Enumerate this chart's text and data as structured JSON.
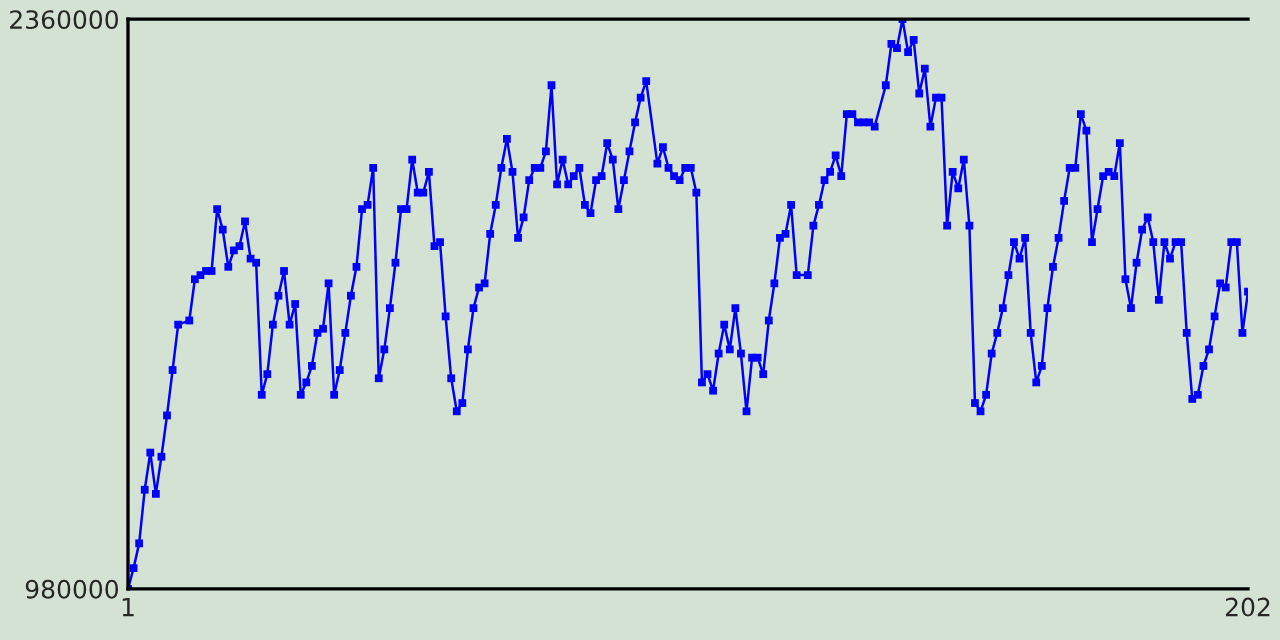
{
  "chart_data": {
    "type": "line",
    "marker": "square",
    "color": "#0000ff",
    "x": [
      1,
      2,
      3,
      4,
      5,
      6,
      7,
      8,
      9,
      10,
      12,
      13,
      14,
      15,
      16,
      17,
      18,
      19,
      20,
      21,
      22,
      23,
      24,
      25,
      26,
      27,
      28,
      29,
      30,
      31,
      32,
      33,
      34,
      35,
      36,
      37,
      38,
      39,
      40,
      41,
      42,
      43,
      44,
      45,
      46,
      47,
      48,
      49,
      50,
      51,
      52,
      53,
      54,
      55,
      56,
      57,
      58,
      59,
      60,
      61,
      62,
      63,
      64,
      65,
      66,
      67,
      68,
      69,
      70,
      71,
      72,
      73,
      74,
      75,
      76,
      77,
      78,
      79,
      80,
      81,
      82,
      83,
      84,
      85,
      86,
      87,
      88,
      89,
      90,
      91,
      92,
      93,
      94,
      96,
      97,
      98,
      99,
      100,
      101,
      102,
      103,
      104,
      105,
      106,
      107,
      108,
      109,
      110,
      111,
      112,
      113,
      114,
      115,
      116,
      117,
      118,
      119,
      120,
      121,
      123,
      124,
      125,
      126,
      127,
      128,
      129,
      130,
      131,
      132,
      133,
      134,
      135,
      137,
      138,
      139,
      140,
      141,
      142,
      143,
      144,
      145,
      146,
      147,
      148,
      149,
      150,
      151,
      152,
      153,
      154,
      155,
      156,
      157,
      158,
      159,
      160,
      161,
      162,
      163,
      164,
      165,
      166,
      167,
      168,
      169,
      170,
      171,
      172,
      173,
      174,
      175,
      176,
      177,
      178,
      179,
      180,
      181,
      182,
      183,
      184,
      185,
      186,
      187,
      188,
      189,
      190,
      191,
      192,
      193,
      194,
      195,
      196,
      197,
      198,
      199,
      200,
      201,
      202
    ],
    "values": [
      980000,
      1030000,
      1090000,
      1220000,
      1310000,
      1210000,
      1300000,
      1400000,
      1510000,
      1620000,
      1630000,
      1730000,
      1740000,
      1750000,
      1750000,
      1900000,
      1850000,
      1760000,
      1800000,
      1810000,
      1870000,
      1780000,
      1770000,
      1450000,
      1500000,
      1620000,
      1690000,
      1750000,
      1620000,
      1670000,
      1450000,
      1480000,
      1520000,
      1600000,
      1610000,
      1720000,
      1450000,
      1510000,
      1600000,
      1690000,
      1760000,
      1900000,
      1910000,
      2000000,
      1490000,
      1560000,
      1660000,
      1770000,
      1900000,
      1900000,
      2020000,
      1940000,
      1940000,
      1990000,
      1810000,
      1820000,
      1640000,
      1490000,
      1410000,
      1430000,
      1560000,
      1660000,
      1710000,
      1720000,
      1840000,
      1910000,
      2000000,
      2070000,
      1990000,
      1830000,
      1880000,
      1970000,
      2000000,
      2000000,
      2040000,
      2200000,
      1960000,
      2020000,
      1960000,
      1980000,
      2000000,
      1910000,
      1890000,
      1970000,
      1980000,
      2060000,
      2020000,
      1900000,
      1970000,
      2040000,
      2110000,
      2170000,
      2210000,
      2010000,
      2050000,
      2000000,
      1980000,
      1970000,
      2000000,
      2000000,
      1940000,
      1480000,
      1500000,
      1460000,
      1550000,
      1620000,
      1560000,
      1660000,
      1550000,
      1410000,
      1540000,
      1540000,
      1500000,
      1630000,
      1720000,
      1830000,
      1840000,
      1910000,
      1740000,
      1740000,
      1860000,
      1910000,
      1970000,
      1990000,
      2030000,
      1980000,
      2130000,
      2130000,
      2110000,
      2110000,
      2110000,
      2100000,
      2200000,
      2300000,
      2290000,
      2360000,
      2280000,
      2310000,
      2180000,
      2240000,
      2100000,
      2170000,
      2170000,
      1860000,
      1990000,
      1950000,
      2020000,
      1860000,
      1430000,
      1410000,
      1450000,
      1550000,
      1600000,
      1660000,
      1740000,
      1820000,
      1780000,
      1830000,
      1600000,
      1480000,
      1520000,
      1660000,
      1760000,
      1830000,
      1920000,
      2000000,
      2000000,
      2130000,
      2090000,
      1820000,
      1900000,
      1980000,
      1990000,
      1980000,
      2060000,
      1730000,
      1660000,
      1770000,
      1850000,
      1880000,
      1820000,
      1680000,
      1820000,
      1780000,
      1820000,
      1820000,
      1600000,
      1440000,
      1450000,
      1520000,
      1560000,
      1640000,
      1720000,
      1710000,
      1820000,
      1820000,
      1600000,
      1700000
    ],
    "xlim": [
      1,
      202
    ],
    "ylim": [
      980000,
      2360000
    ],
    "xticks": [
      1,
      202
    ],
    "yticks": [
      980000,
      2360000
    ]
  }
}
